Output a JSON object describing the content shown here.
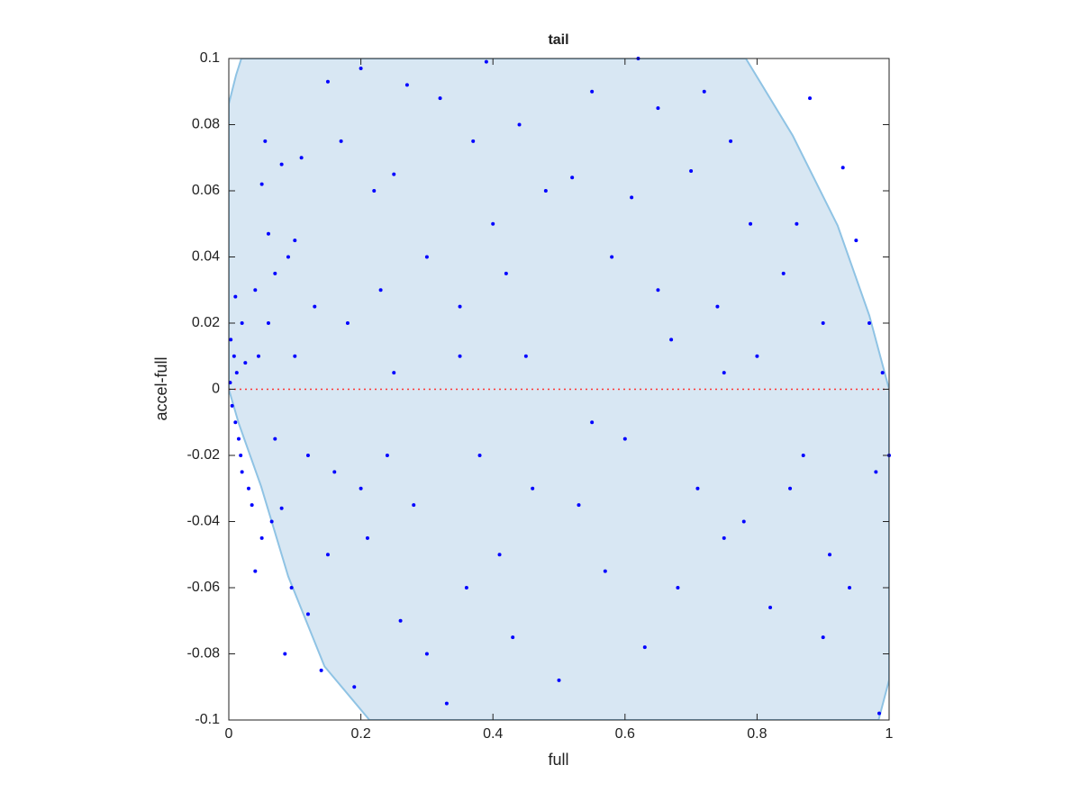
{
  "chart_data": {
    "type": "scatter",
    "title": "tail",
    "xlabel": "full",
    "ylabel": "accel-full",
    "xlim": [
      0,
      1
    ],
    "ylim": [
      -0.1,
      0.1
    ],
    "xticks": [
      0,
      0.2,
      0.4,
      0.6,
      0.8,
      1
    ],
    "yticks": [
      -0.1,
      -0.08,
      -0.06,
      -0.04,
      -0.02,
      0,
      0.02,
      0.04,
      0.06,
      0.08,
      0.1
    ],
    "grid": false,
    "color": "#0000ff",
    "hline": 0,
    "hline_color": "#ff3333",
    "region": {
      "color": "#d8e7f3",
      "edge_color": "#8fc3e4",
      "x": [
        0,
        0.011,
        0.019,
        0.783,
        0.854,
        0.922,
        0.97,
        1,
        1,
        0.984,
        0.213,
        0.145,
        0.09,
        0.049,
        0.015,
        0
      ],
      "y": [
        0.0863,
        0.095,
        0.1,
        0.1,
        0.0767,
        0.0495,
        0.0223,
        0,
        -0.0879,
        -0.1,
        -0.1,
        -0.0838,
        -0.0566,
        -0.0294,
        -0.0103,
        0
      ]
    },
    "x": [
      0.002,
      0.005,
      0.008,
      0.01,
      0.003,
      0.012,
      0.015,
      0.02,
      0.018,
      0.025,
      0.03,
      0.035,
      0.04,
      0.045,
      0.05,
      0.055,
      0.06,
      0.065,
      0.07,
      0.08,
      0.085,
      0.09,
      0.095,
      0.1,
      0.11,
      0.12,
      0.13,
      0.14,
      0.15,
      0.16,
      0.17,
      0.18,
      0.19,
      0.2,
      0.21,
      0.22,
      0.23,
      0.24,
      0.25,
      0.26,
      0.27,
      0.28,
      0.3,
      0.32,
      0.33,
      0.35,
      0.36,
      0.37,
      0.38,
      0.39,
      0.4,
      0.41,
      0.42,
      0.43,
      0.44,
      0.46,
      0.48,
      0.5,
      0.52,
      0.53,
      0.55,
      0.57,
      0.58,
      0.6,
      0.61,
      0.62,
      0.63,
      0.65,
      0.67,
      0.68,
      0.7,
      0.71,
      0.72,
      0.74,
      0.75,
      0.76,
      0.78,
      0.79,
      0.8,
      0.82,
      0.84,
      0.86,
      0.87,
      0.88,
      0.9,
      0.91,
      0.93,
      0.94,
      0.95,
      0.97,
      0.98,
      0.99,
      1.0,
      0.985,
      0.02,
      0.01,
      0.04,
      0.06,
      0.07,
      0.08,
      0.1,
      0.12,
      0.05,
      0.15,
      0.2,
      0.25,
      0.3,
      0.35,
      0.45,
      0.55,
      0.65,
      0.75,
      0.85,
      0.9
    ],
    "y": [
      0.002,
      -0.005,
      0.01,
      -0.01,
      0.015,
      0.005,
      -0.015,
      0.02,
      -0.02,
      0.008,
      -0.03,
      -0.035,
      0.03,
      0.01,
      -0.045,
      0.075,
      0.047,
      -0.04,
      0.035,
      0.068,
      -0.08,
      0.04,
      -0.06,
      0.01,
      0.07,
      -0.068,
      0.025,
      -0.085,
      0.093,
      -0.025,
      0.075,
      0.02,
      -0.09,
      0.097,
      -0.045,
      0.06,
      0.03,
      -0.02,
      0.065,
      -0.07,
      0.092,
      -0.035,
      0.04,
      0.088,
      -0.095,
      0.01,
      -0.06,
      0.075,
      -0.02,
      0.099,
      0.05,
      -0.05,
      0.035,
      -0.075,
      0.08,
      -0.03,
      0.06,
      -0.088,
      0.064,
      -0.035,
      0.09,
      -0.055,
      0.04,
      -0.015,
      0.058,
      0.1,
      -0.078,
      0.085,
      0.015,
      -0.06,
      0.066,
      -0.03,
      0.09,
      0.025,
      -0.045,
      0.075,
      -0.04,
      0.05,
      0.01,
      -0.066,
      0.035,
      0.05,
      -0.02,
      0.088,
      0.02,
      -0.05,
      0.067,
      -0.06,
      0.045,
      0.02,
      -0.025,
      0.005,
      -0.02,
      -0.098,
      -0.025,
      0.028,
      -0.055,
      0.02,
      -0.015,
      -0.036,
      0.045,
      -0.02,
      0.062,
      -0.05,
      -0.03,
      0.005,
      -0.08,
      0.025,
      0.01,
      -0.01,
      0.03,
      0.005,
      -0.03,
      -0.075
    ]
  }
}
